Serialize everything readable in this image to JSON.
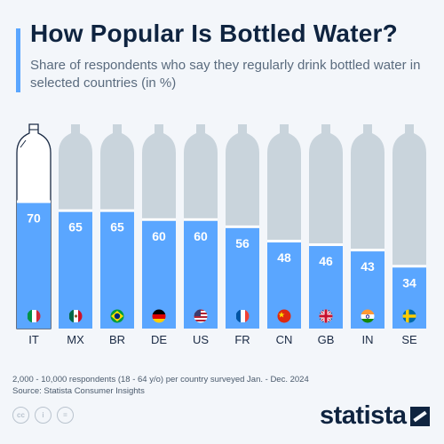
{
  "header": {
    "title": "How Popular Is Bottled Water?",
    "subtitle": "Share of respondents who say they regularly drink bottled water in selected countries (in %)"
  },
  "chart_data": {
    "type": "bar",
    "categories": [
      "IT",
      "MX",
      "BR",
      "DE",
      "US",
      "FR",
      "CN",
      "GB",
      "IN",
      "SE"
    ],
    "values": [
      70,
      65,
      65,
      60,
      60,
      56,
      48,
      46,
      43,
      34
    ],
    "flag_icons": [
      "italy-flag-icon",
      "mexico-flag-icon",
      "brazil-flag-icon",
      "germany-flag-icon",
      "usa-flag-icon",
      "france-flag-icon",
      "china-flag-icon",
      "uk-flag-icon",
      "india-flag-icon",
      "sweden-flag-icon"
    ],
    "ylim": [
      0,
      100
    ],
    "grid": false,
    "colors": {
      "bar": "#5aa6ff",
      "bottle": "#c9d4dc",
      "outline": "#1a2a44"
    }
  },
  "footer": {
    "note": "2,000 - 10,000 respondents (18 - 64 y/o) per country surveyed Jan. - Dec. 2024",
    "source": "Source: Statista Consumer Insights",
    "cc_icons": [
      "cc-icon",
      "by-icon",
      "nd-icon"
    ],
    "cc_labels": [
      "cc",
      "i",
      "="
    ],
    "logo": "statista"
  }
}
